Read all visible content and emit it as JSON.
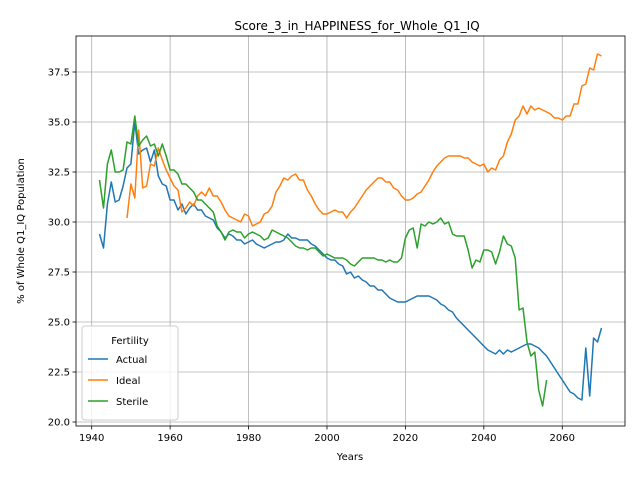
{
  "chart_data": {
    "type": "line",
    "title": "Score_3_in_HAPPINESS_for_Whole_Q1_IQ",
    "xlabel": "Years",
    "ylabel": "% of Whole Q1_IQ Population",
    "xlim": [
      1936,
      2076
    ],
    "ylim": [
      19.8,
      39.3
    ],
    "xticks": [
      1940,
      1960,
      1980,
      2000,
      2020,
      2040,
      2060
    ],
    "yticks": [
      20.0,
      22.5,
      25.0,
      27.5,
      30.0,
      32.5,
      35.0,
      37.5
    ],
    "grid": true,
    "legend": {
      "title": "Fertility",
      "position": "bottom-left"
    },
    "series": [
      {
        "name": "Actual",
        "color": "#1f77b4",
        "x": [
          1942,
          1943,
          1944,
          1945,
          1946,
          1947,
          1948,
          1949,
          1950,
          1951,
          1952,
          1953,
          1954,
          1955,
          1956,
          1957,
          1958,
          1959,
          1960,
          1961,
          1962,
          1963,
          1964,
          1965,
          1966,
          1967,
          1968,
          1969,
          1970,
          1971,
          1972,
          1973,
          1974,
          1975,
          1976,
          1977,
          1978,
          1979,
          1980,
          1981,
          1982,
          1983,
          1984,
          1985,
          1986,
          1987,
          1988,
          1989,
          1990,
          1991,
          1992,
          1993,
          1994,
          1995,
          1996,
          1997,
          1998,
          1999,
          2000,
          2001,
          2002,
          2003,
          2004,
          2005,
          2006,
          2007,
          2008,
          2009,
          2010,
          2011,
          2012,
          2013,
          2014,
          2015,
          2016,
          2017,
          2018,
          2019,
          2020,
          2021,
          2022,
          2023,
          2024,
          2025,
          2026,
          2027,
          2028,
          2029,
          2030,
          2031,
          2032,
          2033,
          2034,
          2035,
          2036,
          2037,
          2038,
          2039,
          2040,
          2041,
          2042,
          2043,
          2044,
          2045,
          2046,
          2047,
          2048,
          2049,
          2050,
          2051,
          2052,
          2053,
          2054,
          2055,
          2056,
          2057,
          2058,
          2059,
          2060,
          2061,
          2062,
          2063,
          2064,
          2065,
          2066,
          2067,
          2068,
          2069,
          2070
        ],
        "y": [
          29.4,
          28.7,
          30.9,
          32.0,
          31.0,
          31.1,
          31.8,
          32.7,
          32.9,
          35.0,
          33.4,
          33.6,
          33.7,
          33.0,
          33.6,
          32.3,
          31.9,
          31.8,
          31.1,
          31.1,
          30.6,
          30.9,
          30.4,
          30.7,
          30.9,
          30.6,
          30.6,
          30.3,
          30.2,
          30.1,
          29.7,
          29.5,
          29.2,
          29.4,
          29.3,
          29.1,
          29.1,
          28.9,
          29.0,
          29.1,
          28.9,
          28.8,
          28.7,
          28.8,
          28.9,
          29.0,
          29.0,
          29.1,
          29.4,
          29.2,
          29.2,
          29.1,
          29.1,
          29.1,
          28.9,
          28.8,
          28.6,
          28.4,
          28.2,
          28.1,
          28.1,
          27.9,
          27.8,
          27.4,
          27.5,
          27.2,
          27.3,
          27.1,
          27.0,
          26.8,
          26.8,
          26.6,
          26.6,
          26.4,
          26.2,
          26.1,
          26.0,
          26.0,
          26.0,
          26.1,
          26.2,
          26.3,
          26.3,
          26.3,
          26.3,
          26.2,
          26.1,
          25.9,
          25.8,
          25.6,
          25.5,
          25.2,
          25.0,
          24.8,
          24.6,
          24.4,
          24.2,
          24.0,
          23.8,
          23.6,
          23.5,
          23.4,
          23.6,
          23.4,
          23.6,
          23.5,
          23.6,
          23.7,
          23.8,
          23.9,
          23.9,
          23.8,
          23.7,
          23.5,
          23.3,
          23.0,
          22.7,
          22.4,
          22.1,
          21.8,
          21.5,
          21.4,
          21.2,
          21.1,
          23.7,
          21.3,
          24.2,
          24.0,
          24.7
        ]
      },
      {
        "name": "Ideal",
        "color": "#ff7f0e",
        "x": [
          1949,
          1950,
          1951,
          1952,
          1953,
          1954,
          1955,
          1956,
          1957,
          1958,
          1959,
          1960,
          1961,
          1962,
          1963,
          1964,
          1965,
          1966,
          1967,
          1968,
          1969,
          1970,
          1971,
          1972,
          1973,
          1974,
          1975,
          1976,
          1977,
          1978,
          1979,
          1980,
          1981,
          1982,
          1983,
          1984,
          1985,
          1986,
          1987,
          1988,
          1989,
          1990,
          1991,
          1992,
          1993,
          1994,
          1995,
          1996,
          1997,
          1998,
          1999,
          2000,
          2001,
          2002,
          2003,
          2004,
          2005,
          2006,
          2007,
          2008,
          2009,
          2010,
          2011,
          2012,
          2013,
          2014,
          2015,
          2016,
          2017,
          2018,
          2019,
          2020,
          2021,
          2022,
          2023,
          2024,
          2025,
          2026,
          2027,
          2028,
          2029,
          2030,
          2031,
          2032,
          2033,
          2034,
          2035,
          2036,
          2037,
          2038,
          2039,
          2040,
          2041,
          2042,
          2043,
          2044,
          2045,
          2046,
          2047,
          2048,
          2049,
          2050,
          2051,
          2052,
          2053,
          2054,
          2055,
          2056,
          2057,
          2058,
          2059,
          2060,
          2061,
          2062,
          2063,
          2064,
          2065,
          2066,
          2067,
          2068,
          2069,
          2070
        ],
        "y": [
          30.2,
          31.9,
          31.2,
          34.6,
          31.7,
          31.8,
          32.9,
          32.8,
          33.7,
          33.1,
          32.6,
          32.2,
          31.8,
          31.6,
          30.5,
          30.7,
          31.0,
          30.8,
          31.3,
          31.5,
          31.3,
          31.7,
          31.3,
          31.3,
          31.0,
          30.6,
          30.3,
          30.2,
          30.1,
          30.0,
          30.4,
          30.3,
          29.8,
          29.9,
          30.0,
          30.4,
          30.5,
          30.8,
          31.5,
          31.8,
          32.2,
          32.1,
          32.3,
          32.4,
          32.1,
          32.1,
          31.6,
          31.3,
          30.9,
          30.6,
          30.4,
          30.4,
          30.5,
          30.6,
          30.5,
          30.5,
          30.2,
          30.5,
          30.7,
          31.0,
          31.3,
          31.6,
          31.8,
          32.0,
          32.2,
          32.2,
          32.0,
          32.0,
          31.7,
          31.6,
          31.3,
          31.1,
          31.1,
          31.2,
          31.4,
          31.5,
          31.8,
          32.1,
          32.5,
          32.8,
          33.0,
          33.2,
          33.3,
          33.3,
          33.3,
          33.3,
          33.2,
          33.2,
          33.0,
          32.9,
          32.8,
          32.9,
          32.5,
          32.7,
          32.6,
          33.1,
          33.3,
          34.0,
          34.4,
          35.1,
          35.3,
          35.8,
          35.4,
          35.8,
          35.6,
          35.7,
          35.6,
          35.5,
          35.4,
          35.2,
          35.2,
          35.1,
          35.3,
          35.3,
          35.9,
          35.9,
          36.8,
          36.9,
          37.7,
          37.6,
          38.4,
          38.3
        ]
      },
      {
        "name": "Sterile",
        "color": "#2ca02c",
        "x": [
          1942,
          1943,
          1944,
          1945,
          1946,
          1947,
          1948,
          1949,
          1950,
          1951,
          1952,
          1953,
          1954,
          1955,
          1956,
          1957,
          1958,
          1959,
          1960,
          1961,
          1962,
          1963,
          1964,
          1965,
          1966,
          1967,
          1968,
          1969,
          1970,
          1971,
          1972,
          1973,
          1974,
          1975,
          1976,
          1977,
          1978,
          1979,
          1980,
          1981,
          1982,
          1983,
          1984,
          1985,
          1986,
          1987,
          1988,
          1989,
          1990,
          1991,
          1992,
          1993,
          1994,
          1995,
          1996,
          1997,
          1998,
          1999,
          2000,
          2001,
          2002,
          2003,
          2004,
          2005,
          2006,
          2007,
          2008,
          2009,
          2010,
          2011,
          2012,
          2013,
          2014,
          2015,
          2016,
          2017,
          2018,
          2019,
          2020,
          2021,
          2022,
          2023,
          2024,
          2025,
          2026,
          2027,
          2028,
          2029,
          2030,
          2031,
          2032,
          2033,
          2034,
          2035,
          2036,
          2037,
          2038,
          2039,
          2040,
          2041,
          2042,
          2043,
          2044,
          2045,
          2046,
          2047,
          2048,
          2049,
          2050,
          2051,
          2052,
          2053,
          2054,
          2055,
          2056
        ],
        "y": [
          32.1,
          30.7,
          32.9,
          33.6,
          32.5,
          32.5,
          32.6,
          34.0,
          33.9,
          35.3,
          33.8,
          34.1,
          34.3,
          33.8,
          33.9,
          33.3,
          33.9,
          33.3,
          32.6,
          32.6,
          32.4,
          31.9,
          31.9,
          31.7,
          31.5,
          31.1,
          31.1,
          30.9,
          30.7,
          30.5,
          29.8,
          29.5,
          29.1,
          29.5,
          29.6,
          29.5,
          29.5,
          29.2,
          29.4,
          29.5,
          29.4,
          29.3,
          29.1,
          29.2,
          29.6,
          29.5,
          29.4,
          29.3,
          29.2,
          29.0,
          28.8,
          28.7,
          28.7,
          28.6,
          28.7,
          28.7,
          28.5,
          28.3,
          28.4,
          28.3,
          28.2,
          28.2,
          28.2,
          28.1,
          27.9,
          27.8,
          28.0,
          28.2,
          28.2,
          28.2,
          28.2,
          28.1,
          28.1,
          28.0,
          28.1,
          28.0,
          28.0,
          28.2,
          29.2,
          29.6,
          29.7,
          28.7,
          29.9,
          29.8,
          30.0,
          29.9,
          30.0,
          30.2,
          29.9,
          30.0,
          29.4,
          29.3,
          29.3,
          29.3,
          28.6,
          27.7,
          28.1,
          28.0,
          28.6,
          28.6,
          28.5,
          27.9,
          28.5,
          29.3,
          28.9,
          28.8,
          28.2,
          25.6,
          25.7,
          24.0,
          23.3,
          23.5,
          21.6,
          20.8,
          22.1
        ]
      }
    ]
  }
}
